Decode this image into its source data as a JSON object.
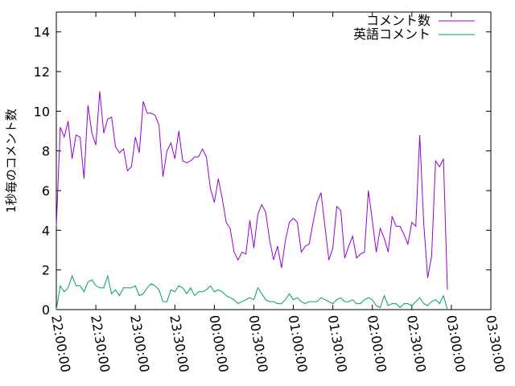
{
  "chart_data": {
    "type": "line",
    "title": "",
    "xlabel": "",
    "ylabel": "1秒毎のコメント数",
    "x_ticks": [
      "22:00:00",
      "22:30:00",
      "23:00:00",
      "23:30:00",
      "00:00:00",
      "00:30:00",
      "01:00:00",
      "01:30:00",
      "02:00:00",
      "02:30:00",
      "03:00:00",
      "03:30:00"
    ],
    "y_ticks": [
      "0",
      "2",
      "4",
      "6",
      "8",
      "10",
      "12",
      "14"
    ],
    "ylim": [
      0,
      15
    ],
    "xlim": [
      "22:00:00",
      "03:30:00"
    ],
    "grid": false,
    "legend_position": "top-right",
    "x_start": "22:00:00",
    "x_step_seconds": 180,
    "series": [
      {
        "name": "コメント数",
        "color": "#9400d3",
        "values": [
          4.2,
          9.2,
          8.7,
          9.5,
          7.6,
          8.8,
          8.7,
          6.6,
          10.3,
          8.9,
          8.3,
          11.0,
          8.9,
          9.6,
          9.7,
          8.2,
          7.9,
          8.1,
          7.0,
          7.2,
          8.7,
          7.9,
          10.5,
          9.9,
          9.9,
          9.8,
          9.3,
          6.7,
          8.0,
          8.4,
          7.6,
          9.0,
          7.5,
          7.4,
          7.5,
          7.7,
          7.7,
          8.1,
          7.7,
          6.1,
          5.4,
          6.6,
          5.6,
          4.4,
          4.1,
          2.9,
          2.5,
          2.9,
          2.8,
          4.5,
          3.1,
          4.8,
          5.3,
          4.9,
          3.5,
          2.5,
          3.2,
          2.1,
          3.5,
          4.4,
          4.6,
          4.4,
          2.9,
          3.2,
          3.3,
          4.4,
          5.4,
          5.9,
          4.2,
          2.5,
          3.1,
          5.2,
          5.0,
          2.6,
          3.2,
          3.7,
          2.6,
          2.8,
          2.9,
          6.0,
          4.5,
          2.9,
          4.1,
          3.6,
          2.9,
          4.7,
          4.2,
          4.2,
          3.8,
          3.3,
          4.4,
          4.2,
          8.8,
          4.4,
          1.6,
          2.7,
          7.5,
          7.2,
          7.6,
          1.0
        ]
      },
      {
        "name": "英語コメント",
        "color": "#009e73",
        "values": [
          0.0,
          1.2,
          0.9,
          1.1,
          1.7,
          1.2,
          1.2,
          0.9,
          1.4,
          1.5,
          1.2,
          1.1,
          1.1,
          1.7,
          0.8,
          1.0,
          0.7,
          1.1,
          1.1,
          1.1,
          1.2,
          0.7,
          0.8,
          1.1,
          1.3,
          1.2,
          1.0,
          0.4,
          0.4,
          1.0,
          0.9,
          1.2,
          1.1,
          0.8,
          1.1,
          0.7,
          0.9,
          0.9,
          1.0,
          1.2,
          0.9,
          1.0,
          0.9,
          0.7,
          0.6,
          0.5,
          0.3,
          0.4,
          0.5,
          0.6,
          0.5,
          1.1,
          0.8,
          0.5,
          0.4,
          0.4,
          0.3,
          0.3,
          0.5,
          0.8,
          0.5,
          0.6,
          0.4,
          0.3,
          0.4,
          0.4,
          0.4,
          0.6,
          0.5,
          0.4,
          0.3,
          0.5,
          0.6,
          0.4,
          0.4,
          0.5,
          0.3,
          0.3,
          0.5,
          0.6,
          0.5,
          0.2,
          0.1,
          0.7,
          0.2,
          0.3,
          0.3,
          0.1,
          0.3,
          0.3,
          0.2,
          0.4,
          0.6,
          0.3,
          0.2,
          0.4,
          0.5,
          0.3,
          0.7,
          0.0
        ]
      }
    ]
  }
}
